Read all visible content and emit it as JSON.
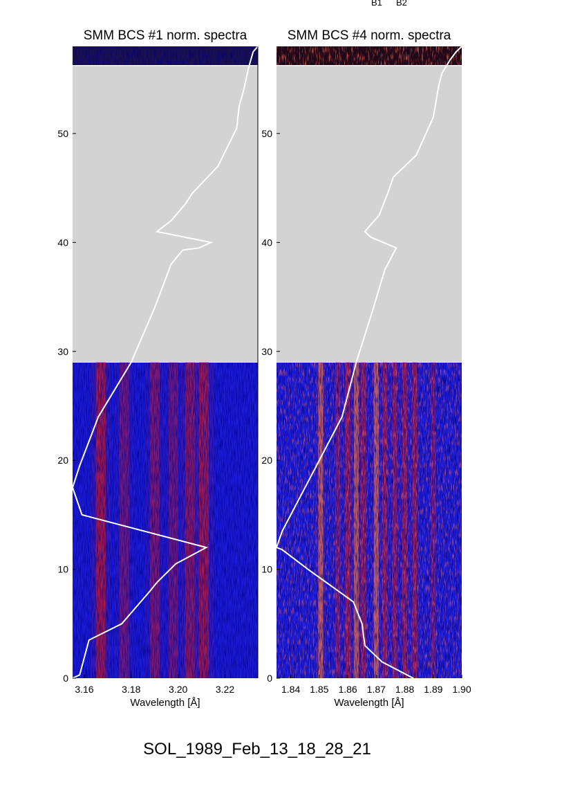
{
  "footer_label": "SOL_1989_Feb_13_18_28_21",
  "top_marks": [
    "B1",
    "B2"
  ],
  "colors": {
    "gap": "#d3d3d3",
    "curve": "#ffffff",
    "low": "#000000",
    "mid": "#1c1cd8",
    "high": "#d81c1c",
    "peak": "#ff8c3c"
  },
  "chart_data": [
    {
      "type": "heatmap",
      "title": "SMM BCS #1 norm. spectra",
      "xlabel": "Wavelength [Å]",
      "ylabel": "",
      "xlim": [
        3.155,
        3.234
      ],
      "ylim": [
        0,
        58
      ],
      "xticks": [
        "3.16",
        "3.18",
        "3.20",
        "3.22"
      ],
      "xtick_values": [
        3.16,
        3.18,
        3.2,
        3.22
      ],
      "yticks": [
        "0",
        "10",
        "20",
        "30",
        "40",
        "50"
      ],
      "ytick_values": [
        0,
        10,
        20,
        30,
        40,
        50
      ],
      "data_gap_y": [
        29,
        56.2
      ],
      "emission_lines": [
        {
          "x": 3.167,
          "strength": 0.85
        },
        {
          "x": 3.177,
          "strength": 0.35
        },
        {
          "x": 3.19,
          "strength": 0.45
        },
        {
          "x": 3.198,
          "strength": 0.3
        },
        {
          "x": 3.205,
          "strength": 0.55
        },
        {
          "x": 3.211,
          "strength": 0.75
        }
      ],
      "overlay_curve": {
        "x": [
          3.155,
          3.158,
          3.162,
          3.176,
          3.188,
          3.191,
          3.199,
          3.212,
          3.159,
          3.155,
          3.158,
          3.166,
          3.18,
          3.19,
          3.197,
          3.202,
          3.209,
          3.214,
          3.191,
          3.197,
          3.203,
          3.206,
          3.217,
          3.225,
          3.226,
          3.228,
          3.23,
          3.232,
          3.234
        ],
        "y": [
          0,
          0.3,
          3.5,
          5,
          8,
          8.8,
          10.5,
          12,
          15,
          17.5,
          19.5,
          24,
          29,
          34,
          38,
          39.3,
          39.5,
          40,
          41,
          42,
          43.5,
          44.5,
          47,
          50.5,
          52.5,
          54,
          56,
          57.5,
          58
        ]
      }
    },
    {
      "type": "heatmap",
      "title": "SMM BCS #4 norm. spectra",
      "xlabel": "Wavelength [Å]",
      "ylabel": "",
      "xlim": [
        1.835,
        1.9
      ],
      "ylim": [
        0,
        58
      ],
      "xticks": [
        "1.84",
        "1.85",
        "1.86",
        "1.87",
        "1.88",
        "1.89",
        "1.90"
      ],
      "xtick_values": [
        1.84,
        1.85,
        1.86,
        1.87,
        1.88,
        1.89,
        1.9
      ],
      "yticks": [
        "0",
        "10",
        "20",
        "30",
        "40",
        "50"
      ],
      "ytick_values": [
        0,
        10,
        20,
        30,
        40,
        50
      ],
      "data_gap_y": [
        29,
        56.2
      ],
      "emission_lines": [
        {
          "x": 1.8505,
          "strength": 0.75
        },
        {
          "x": 1.8565,
          "strength": 0.35
        },
        {
          "x": 1.86,
          "strength": 0.6
        },
        {
          "x": 1.863,
          "strength": 0.65
        },
        {
          "x": 1.8655,
          "strength": 0.5
        },
        {
          "x": 1.87,
          "strength": 0.7
        },
        {
          "x": 1.873,
          "strength": 0.55
        },
        {
          "x": 1.8765,
          "strength": 0.45
        },
        {
          "x": 1.88,
          "strength": 0.5
        },
        {
          "x": 1.8835,
          "strength": 0.55
        },
        {
          "x": 1.89,
          "strength": 0.25
        }
      ],
      "overlay_curve": {
        "x": [
          1.883,
          1.872,
          1.866,
          1.865,
          1.862,
          1.846,
          1.837,
          1.835,
          1.837,
          1.846,
          1.858,
          1.863,
          1.869,
          1.873,
          1.877,
          1.868,
          1.866,
          1.871,
          1.874,
          1.876,
          1.884,
          1.89,
          1.891,
          1.892,
          1.893,
          1.896,
          1.898,
          1.9
        ],
        "y": [
          0,
          1.5,
          3,
          5,
          7,
          10,
          11.8,
          12,
          13.5,
          18,
          24,
          29,
          34,
          37.5,
          39.5,
          40.5,
          41,
          42.5,
          44.5,
          46,
          48,
          51.5,
          53,
          54.5,
          55.5,
          56.8,
          57.5,
          58
        ]
      }
    }
  ]
}
